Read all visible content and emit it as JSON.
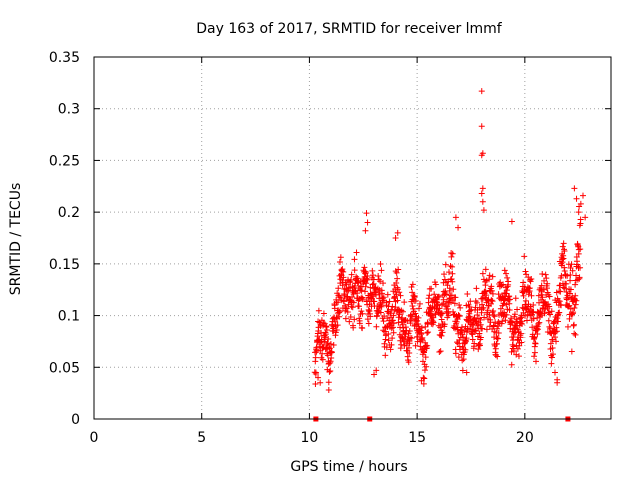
{
  "chart_data": {
    "type": "scatter",
    "title": "Day 163 of 2017, SRMTID for receiver lmmf",
    "xlabel": "GPS time / hours",
    "ylabel": "SRMTID / TECUs",
    "xlim": [
      0,
      24
    ],
    "ylim": [
      0,
      0.35
    ],
    "xticks": [
      0,
      5,
      10,
      15,
      20
    ],
    "xtick_labels": [
      "0",
      "5",
      "10",
      "15",
      "20"
    ],
    "yticks": [
      0,
      0.05,
      0.1,
      0.15,
      0.2,
      0.25,
      0.3,
      0.35
    ],
    "ytick_labels": [
      "0",
      "0.05",
      "0.1",
      "0.15",
      "0.2",
      "0.25",
      "0.3",
      "0.35"
    ],
    "grid": true,
    "marker": "+",
    "color": "#ff0000",
    "gap_markers_x": [
      10.3,
      12.8,
      22.0
    ],
    "trend": [
      {
        "x": 10.25,
        "y": 0.06,
        "spread": 0.016
      },
      {
        "x": 10.6,
        "y": 0.07,
        "spread": 0.022
      },
      {
        "x": 11.0,
        "y": 0.085,
        "spread": 0.022
      },
      {
        "x": 11.3,
        "y": 0.1,
        "spread": 0.022
      },
      {
        "x": 11.7,
        "y": 0.13,
        "spread": 0.022
      },
      {
        "x": 12.0,
        "y": 0.13,
        "spread": 0.025
      },
      {
        "x": 12.3,
        "y": 0.1,
        "spread": 0.03
      },
      {
        "x": 12.6,
        "y": 0.145,
        "spread": 0.02
      },
      {
        "x": 12.9,
        "y": 0.12,
        "spread": 0.02
      },
      {
        "x": 13.2,
        "y": 0.105,
        "spread": 0.025
      },
      {
        "x": 13.5,
        "y": 0.115,
        "spread": 0.025
      },
      {
        "x": 13.8,
        "y": 0.09,
        "spread": 0.025
      },
      {
        "x": 14.2,
        "y": 0.11,
        "spread": 0.025
      },
      {
        "x": 14.6,
        "y": 0.085,
        "spread": 0.022
      },
      {
        "x": 15.0,
        "y": 0.09,
        "spread": 0.022
      },
      {
        "x": 15.4,
        "y": 0.08,
        "spread": 0.022
      },
      {
        "x": 15.8,
        "y": 0.1,
        "spread": 0.025
      },
      {
        "x": 16.2,
        "y": 0.12,
        "spread": 0.025
      },
      {
        "x": 16.6,
        "y": 0.11,
        "spread": 0.03
      },
      {
        "x": 17.0,
        "y": 0.09,
        "spread": 0.025
      },
      {
        "x": 17.4,
        "y": 0.08,
        "spread": 0.022
      },
      {
        "x": 17.8,
        "y": 0.1,
        "spread": 0.025
      },
      {
        "x": 18.2,
        "y": 0.11,
        "spread": 0.025
      },
      {
        "x": 18.6,
        "y": 0.1,
        "spread": 0.025
      },
      {
        "x": 19.0,
        "y": 0.115,
        "spread": 0.025
      },
      {
        "x": 19.4,
        "y": 0.09,
        "spread": 0.022
      },
      {
        "x": 19.8,
        "y": 0.1,
        "spread": 0.025
      },
      {
        "x": 20.2,
        "y": 0.115,
        "spread": 0.025
      },
      {
        "x": 20.6,
        "y": 0.1,
        "spread": 0.025
      },
      {
        "x": 21.0,
        "y": 0.105,
        "spread": 0.025
      },
      {
        "x": 21.4,
        "y": 0.095,
        "spread": 0.025
      },
      {
        "x": 21.8,
        "y": 0.13,
        "spread": 0.03
      },
      {
        "x": 22.2,
        "y": 0.12,
        "spread": 0.035
      },
      {
        "x": 22.6,
        "y": 0.15,
        "spread": 0.04
      }
    ],
    "outliers": [
      {
        "x": 18.0,
        "y": 0.317
      },
      {
        "x": 18.0,
        "y": 0.283
      },
      {
        "x": 18.05,
        "y": 0.257
      },
      {
        "x": 18.0,
        "y": 0.255
      },
      {
        "x": 18.05,
        "y": 0.223
      },
      {
        "x": 18.0,
        "y": 0.218
      },
      {
        "x": 18.05,
        "y": 0.21
      },
      {
        "x": 18.1,
        "y": 0.202
      },
      {
        "x": 12.65,
        "y": 0.199
      },
      {
        "x": 12.7,
        "y": 0.19
      },
      {
        "x": 12.6,
        "y": 0.182
      },
      {
        "x": 19.4,
        "y": 0.191
      },
      {
        "x": 16.8,
        "y": 0.195
      },
      {
        "x": 16.9,
        "y": 0.185
      },
      {
        "x": 22.3,
        "y": 0.223
      },
      {
        "x": 22.4,
        "y": 0.213
      },
      {
        "x": 22.7,
        "y": 0.216
      },
      {
        "x": 22.6,
        "y": 0.208
      },
      {
        "x": 22.5,
        "y": 0.2
      },
      {
        "x": 22.8,
        "y": 0.195
      },
      {
        "x": 10.4,
        "y": 0.04
      },
      {
        "x": 10.5,
        "y": 0.035
      },
      {
        "x": 10.9,
        "y": 0.028
      },
      {
        "x": 10.3,
        "y": 0.045
      },
      {
        "x": 13.0,
        "y": 0.043
      },
      {
        "x": 13.1,
        "y": 0.047
      },
      {
        "x": 15.2,
        "y": 0.037
      },
      {
        "x": 17.3,
        "y": 0.045
      },
      {
        "x": 21.5,
        "y": 0.035
      },
      {
        "x": 21.5,
        "y": 0.038
      },
      {
        "x": 21.4,
        "y": 0.045
      },
      {
        "x": 14.1,
        "y": 0.18
      },
      {
        "x": 14.0,
        "y": 0.175
      }
    ]
  }
}
